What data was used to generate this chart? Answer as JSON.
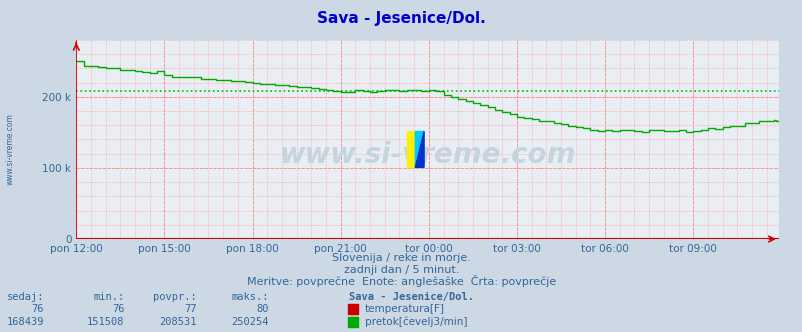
{
  "title": "Sava - Jesenice/Dol.",
  "title_color": "#0000cc",
  "bg_color": "#ccd8e4",
  "plot_bg_color": "#e8eef4",
  "xlabel": "Slovenija / reke in morje.",
  "line2_text": "zadnji dan / 5 minut.",
  "line3_text": "Meritve: povprečne  Enote: anglešaške  Črta: povprečje",
  "x_tick_labels": [
    "pon 12:00",
    "pon 15:00",
    "pon 18:00",
    "pon 21:00",
    "tor 00:00",
    "tor 03:00",
    "tor 06:00",
    "tor 09:00"
  ],
  "x_tick_positions": [
    0,
    36,
    72,
    108,
    144,
    180,
    216,
    252
  ],
  "ytick_labels": [
    "0",
    "100 k",
    "200 k"
  ],
  "ytick_positions": [
    0,
    100000,
    200000
  ],
  "ylim": [
    0,
    280000
  ],
  "xlim_max": 287,
  "avg_line_value": 208531,
  "temp_color": "#cc0000",
  "flow_color": "#00aa00",
  "avg_color": "#00bb00",
  "watermark_text": "www.si-vreme.com",
  "sidebar_text": "www.si-vreme.com",
  "footer_headers": [
    "sedaj:",
    "min.:",
    "povpr.:",
    "maks.:",
    "Sava - Jesenice/Dol."
  ],
  "temp_vals": [
    76,
    76,
    77,
    80
  ],
  "flow_vals": [
    168439,
    151508,
    208531,
    250254
  ],
  "temp_label": "temperatura[F]",
  "flow_label": "pretok[čevelj3/min]"
}
